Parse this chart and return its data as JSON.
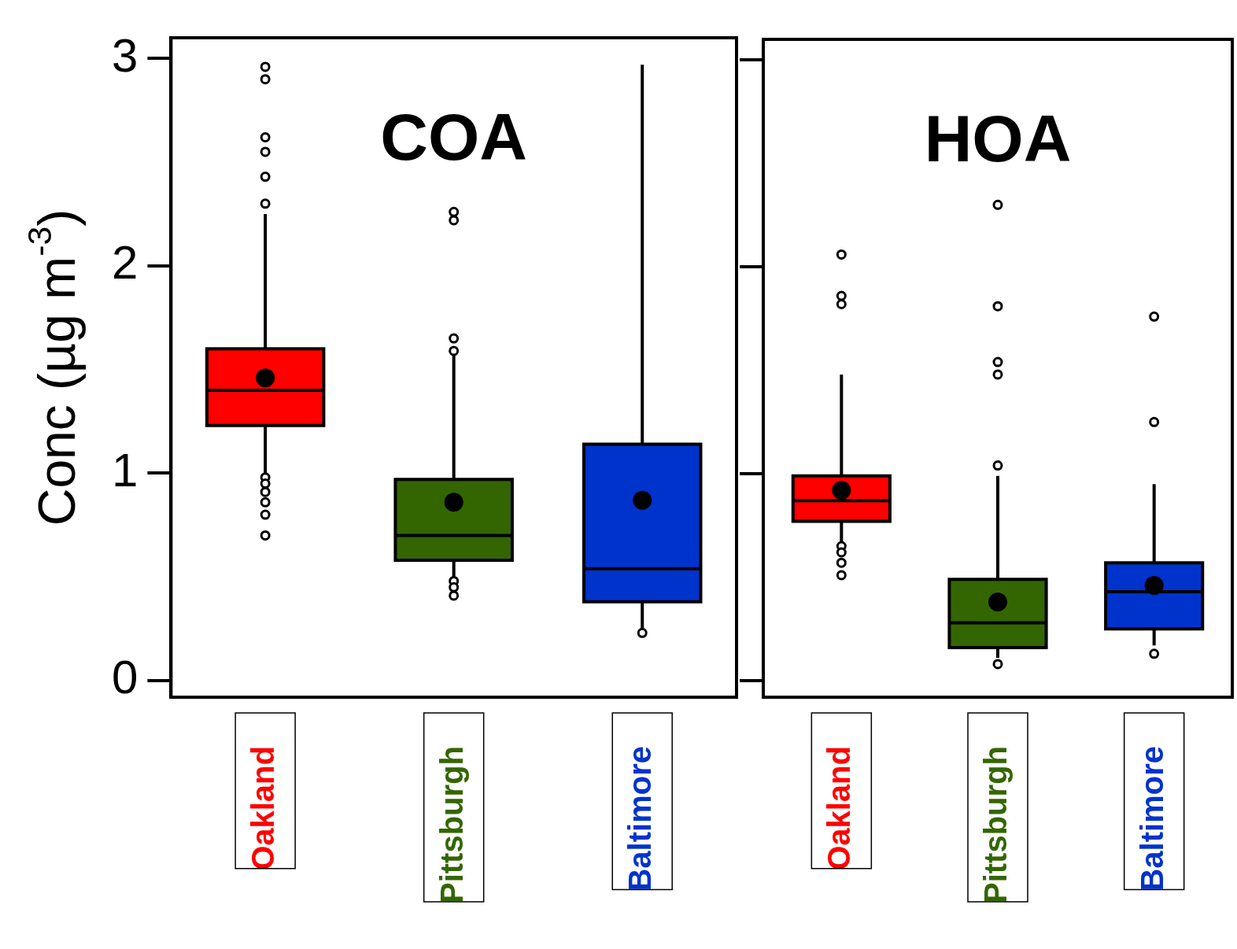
{
  "chart_data": [
    {
      "type": "box",
      "title": "COA",
      "ylabel": "Conc (µg m$^{-3}$)",
      "categories": [
        "Oakland",
        "Pittsburgh",
        "Baltimore"
      ],
      "colors": [
        "#ff0000",
        "#336600",
        "#0033cc"
      ],
      "ylim": [
        -0.08,
        3.1
      ],
      "yticks": [
        0,
        1,
        2,
        3
      ],
      "grid": false,
      "legend": false,
      "marker": "circle",
      "boxes": [
        {
          "low": 0.99,
          "q1": 1.23,
          "median": 1.4,
          "q3": 1.6,
          "high": 2.25,
          "mean": 1.46,
          "outliers": [
            2.96,
            2.9,
            2.62,
            2.55,
            2.43,
            2.3,
            0.98,
            0.95,
            0.91,
            0.86,
            0.8,
            0.7
          ]
        },
        {
          "low": 0.49,
          "q1": 0.58,
          "median": 0.7,
          "q3": 0.97,
          "high": 1.57,
          "mean": 0.86,
          "outliers": [
            2.26,
            2.22,
            1.65,
            1.59,
            0.48,
            0.45,
            0.41
          ]
        },
        {
          "low": 0.25,
          "q1": 0.38,
          "median": 0.54,
          "q3": 1.14,
          "high": 2.97,
          "mean": 0.87,
          "outliers": [
            0.23
          ]
        }
      ]
    },
    {
      "type": "box",
      "title": "HOA",
      "categories": [
        "Oakland",
        "Pittsburgh",
        "Baltimore"
      ],
      "colors": [
        "#ff0000",
        "#336600",
        "#0033cc"
      ],
      "ylim": [
        -0.08,
        3.1
      ],
      "yticks": [
        0,
        1,
        2,
        3
      ],
      "grid": false,
      "legend": false,
      "marker": "circle",
      "tick_labels": "x",
      "boxes": [
        {
          "low": 0.66,
          "q1": 0.77,
          "median": 0.87,
          "q3": 0.99,
          "high": 1.48,
          "mean": 0.92,
          "outliers": [
            2.06,
            1.86,
            1.82,
            0.65,
            0.62,
            0.57,
            0.51
          ]
        },
        {
          "low": 0.11,
          "q1": 0.16,
          "median": 0.28,
          "q3": 0.49,
          "high": 0.99,
          "mean": 0.38,
          "outliers": [
            2.3,
            1.81,
            1.54,
            1.48,
            1.04,
            0.08
          ]
        },
        {
          "low": 0.17,
          "q1": 0.25,
          "median": 0.43,
          "q3": 0.57,
          "high": 0.95,
          "mean": 0.46,
          "outliers": [
            1.76,
            1.25,
            0.13
          ]
        }
      ]
    }
  ]
}
